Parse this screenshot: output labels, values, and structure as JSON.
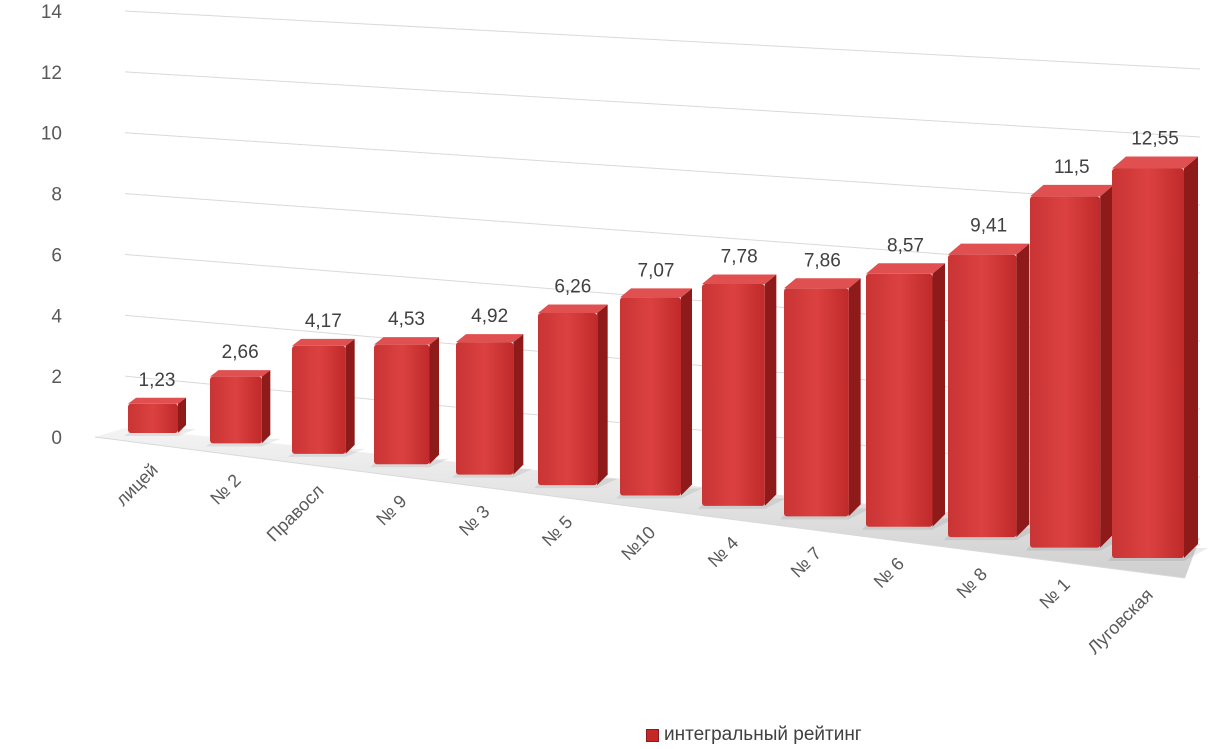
{
  "chart_data": {
    "type": "bar",
    "categories": [
      "лицей",
      "№ 2",
      "Правосл",
      "№ 9",
      "№ 3",
      "№ 5",
      "№10",
      "№ 4",
      "№ 7",
      "№ 6",
      "№ 8",
      "№ 1",
      "Луговская"
    ],
    "series": [
      {
        "name": "интегральный рейтинг",
        "values": [
          1.23,
          2.66,
          4.17,
          4.53,
          4.92,
          6.26,
          7.07,
          7.78,
          7.86,
          8.57,
          9.41,
          11.5,
          12.55
        ],
        "labels": [
          "1,23",
          "2,66",
          "4,17",
          "4,53",
          "4,92",
          "6,26",
          "7,07",
          "7,78",
          "7,86",
          "8,57",
          "9,41",
          "11,5",
          "12,55"
        ]
      }
    ],
    "ylim": [
      0,
      14
    ],
    "yticks": [
      "0",
      "2",
      "4",
      "6",
      "8",
      "10",
      "12",
      "14"
    ],
    "grid": true,
    "legend_position": "bottom",
    "bar_color": "#c62828",
    "style": "3d-perspective"
  },
  "legend": {
    "label": "интегральный рейтинг"
  }
}
